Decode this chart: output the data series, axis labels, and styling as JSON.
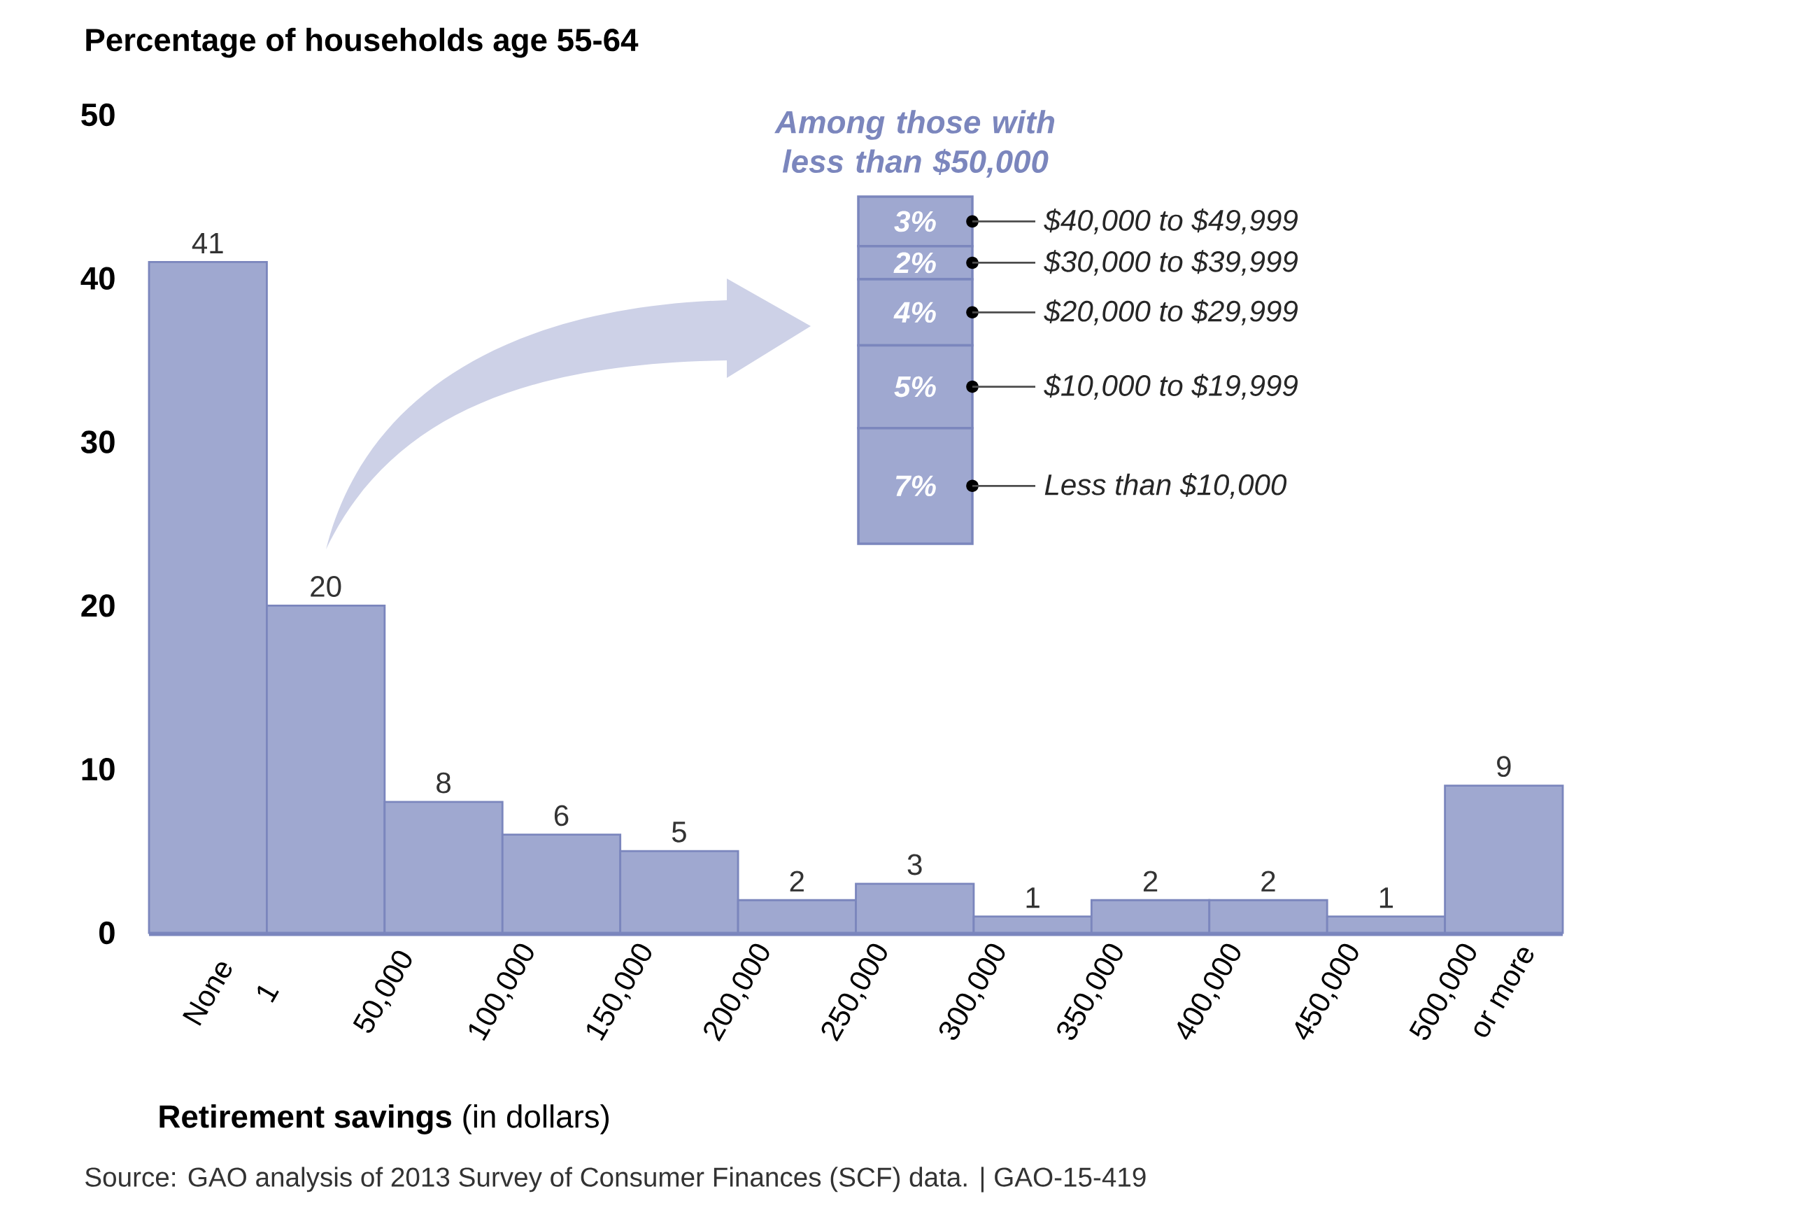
{
  "chart_data": [
    {
      "type": "histogram",
      "ylabel": "Percentage of households age 55-64",
      "xlabel": "**Retirement savings** (in dollars)",
      "bins": [
        -49999,
        1,
        50000,
        100000,
        150000,
        200000,
        250000,
        300000,
        350000,
        400000,
        450000,
        500000,
        550000
      ],
      "values": [
        41,
        20,
        8,
        6,
        5,
        2,
        3,
        1,
        2,
        2,
        1,
        9
      ],
      "color": "#9fa8d0",
      "xlim": [
        -49999,
        550000
      ],
      "xticks": [
        {
          "value": -25000,
          "label": "None"
        },
        1,
        {
          "value": 50000,
          "label": "50,000"
        },
        {
          "value": 100000,
          "label": "100,000"
        },
        {
          "value": 150000,
          "label": "150,000"
        },
        {
          "value": 200000,
          "label": "200,000"
        },
        {
          "value": 250000,
          "label": "250,000"
        },
        {
          "value": 300000,
          "label": "300,000"
        },
        {
          "value": 350000,
          "label": "350,000"
        },
        {
          "value": 400000,
          "label": "400,000"
        },
        {
          "value": 450000,
          "label": "450,000"
        },
        {
          "value": 500000,
          "label": "500,000"
        },
        {
          "value": 525000,
          "label": "or more"
        }
      ],
      "ylim": [
        0,
        50
      ],
      "yticks": [
        0,
        10,
        20,
        30,
        40,
        50
      ],
      "data_labels": true,
      "annotations": [
        "Source: GAO analysis of 2013 Survey of Consumer Finances (SCF) data.  |  GAO-15-419"
      ]
    },
    {
      "type": "bar",
      "stacked": true,
      "title": "Among those with less than $50,000",
      "categories": [
        null
      ],
      "series": [
        {
          "name": "Less than $10,000",
          "color": "#9fa8d0",
          "values": [
            7
          ],
          "value_labels": [
            "7%"
          ]
        },
        {
          "name": "$10,000 to $19,999",
          "color": "#9fa8d0",
          "values": [
            5
          ],
          "value_labels": [
            "5%"
          ]
        },
        {
          "name": "$20,000 to $29,999",
          "color": "#9fa8d0",
          "values": [
            4
          ],
          "value_labels": [
            "4%"
          ]
        },
        {
          "name": "$30,000 to $39,999",
          "color": "#9fa8d0",
          "values": [
            2
          ],
          "value_labels": [
            "2%"
          ]
        },
        {
          "name": "$40,000 to $49,999",
          "color": "#9fa8d0",
          "values": [
            3
          ],
          "value_labels": [
            "3%"
          ]
        }
      ]
    }
  ]
}
